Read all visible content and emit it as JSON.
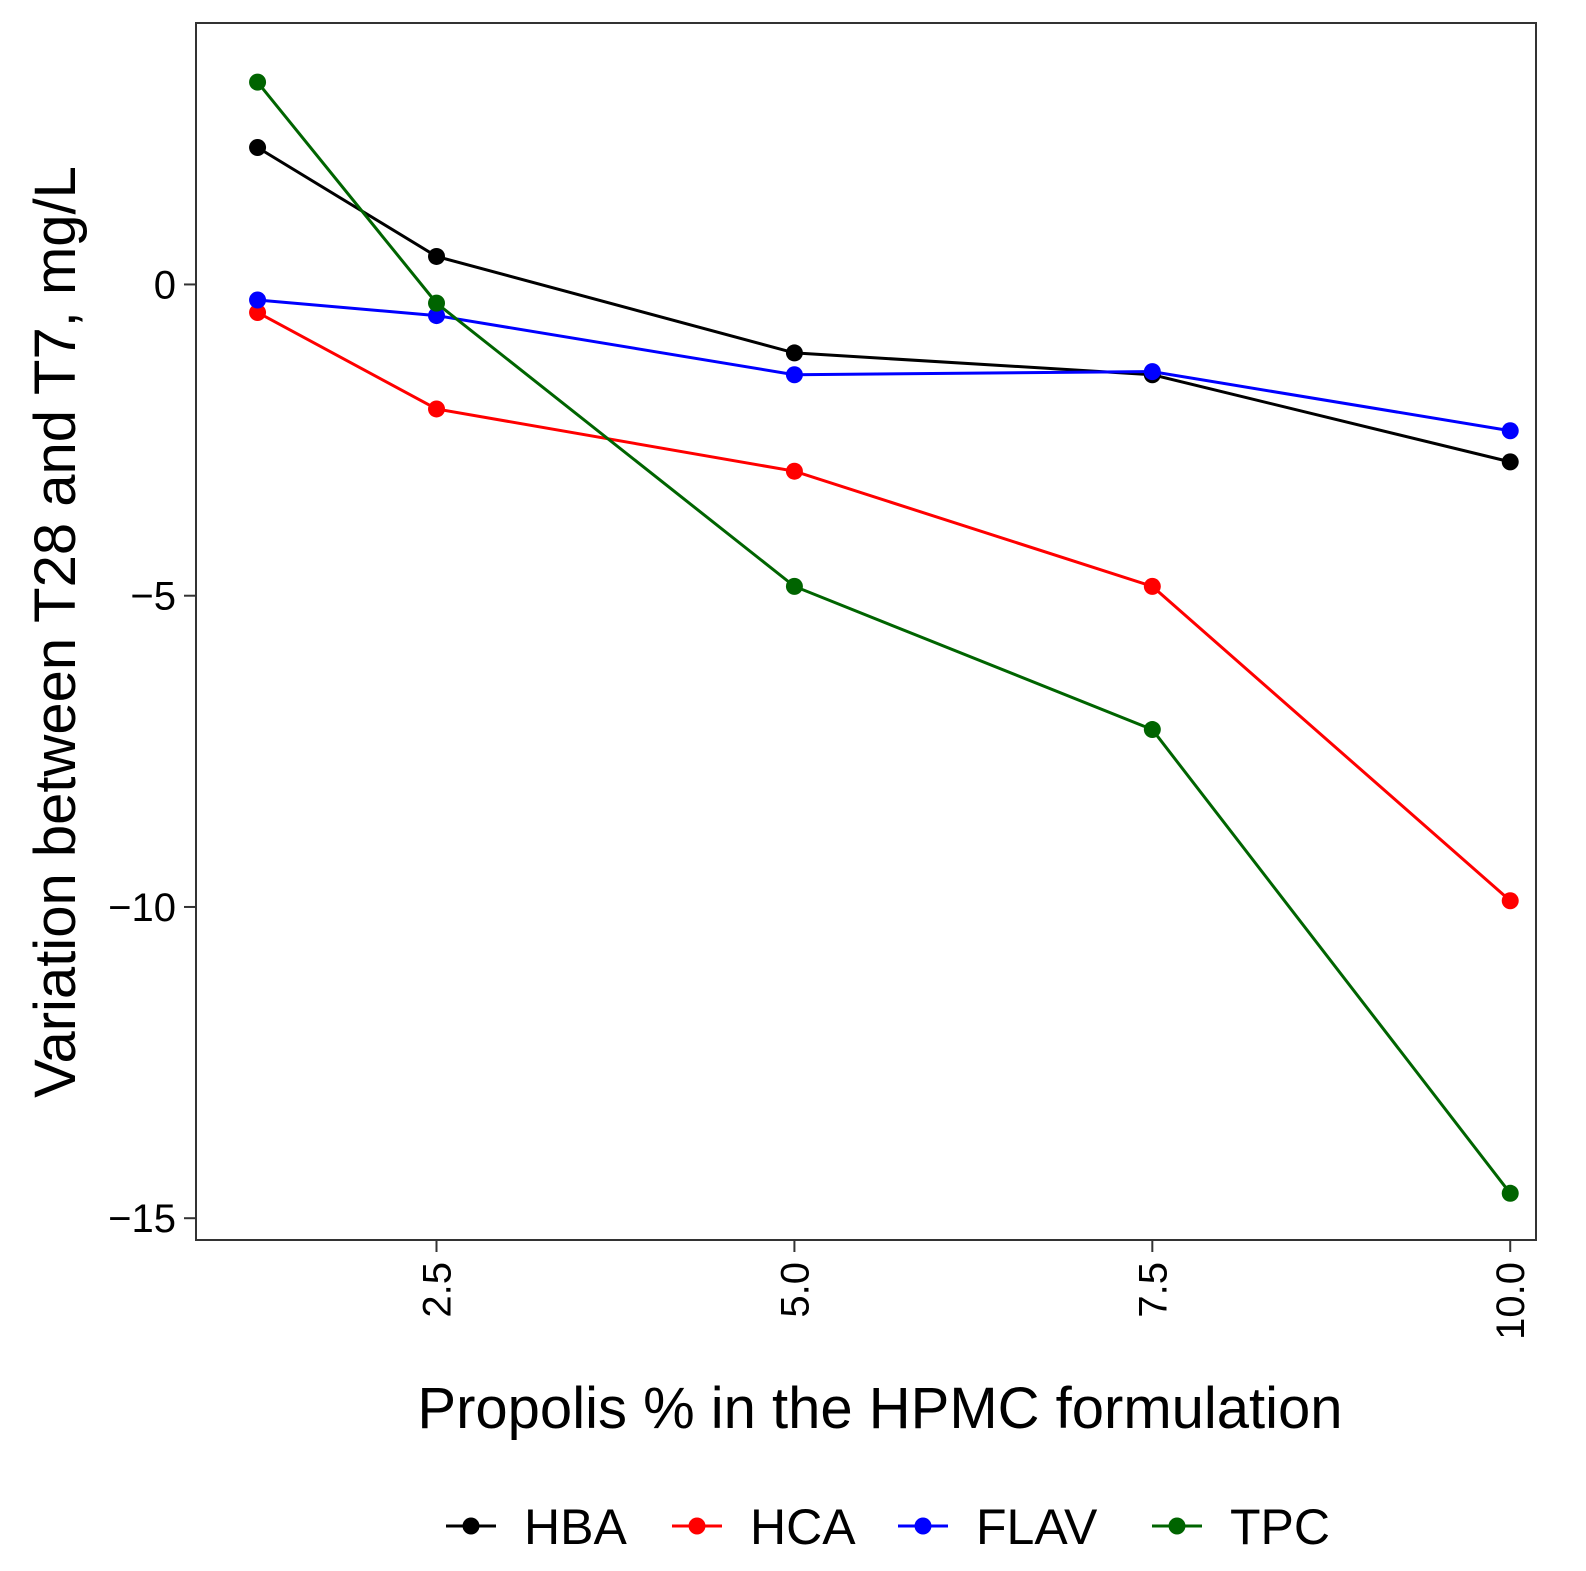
{
  "chart_data": {
    "type": "line",
    "title": "",
    "xlabel": "Propolis % in the HPMC formulation",
    "ylabel": "Variation between T28 and T7, mg/L",
    "x": [
      1.25,
      2.5,
      5.0,
      7.5,
      10.0
    ],
    "xticks": [
      2.5,
      5.0,
      7.5,
      10.0
    ],
    "xtick_labels": [
      "2.5",
      "5.0",
      "7.5",
      "10.0"
    ],
    "yticks": [
      0,
      -5,
      -10,
      -15
    ],
    "ytick_labels": [
      "0",
      "−5",
      "−10",
      "−15"
    ],
    "xlim": [
      0.82,
      10.18
    ],
    "ylim": [
      -15.35,
      4.2
    ],
    "grid": false,
    "legend_position": "bottom",
    "series": [
      {
        "name": "HBA",
        "color": "#000000",
        "values": [
          2.2,
          0.45,
          -1.1,
          -1.45,
          -2.85
        ]
      },
      {
        "name": "HCA",
        "color": "#ff0000",
        "values": [
          -0.45,
          -2.0,
          -3.0,
          -4.85,
          -9.9
        ]
      },
      {
        "name": "FLAV",
        "color": "#0000ff",
        "values": [
          -0.25,
          -0.5,
          -1.45,
          -1.4,
          -2.35
        ]
      },
      {
        "name": "TPC",
        "color": "#006400",
        "values": [
          3.25,
          -0.3,
          -4.85,
          -7.15,
          -14.6
        ]
      }
    ]
  }
}
